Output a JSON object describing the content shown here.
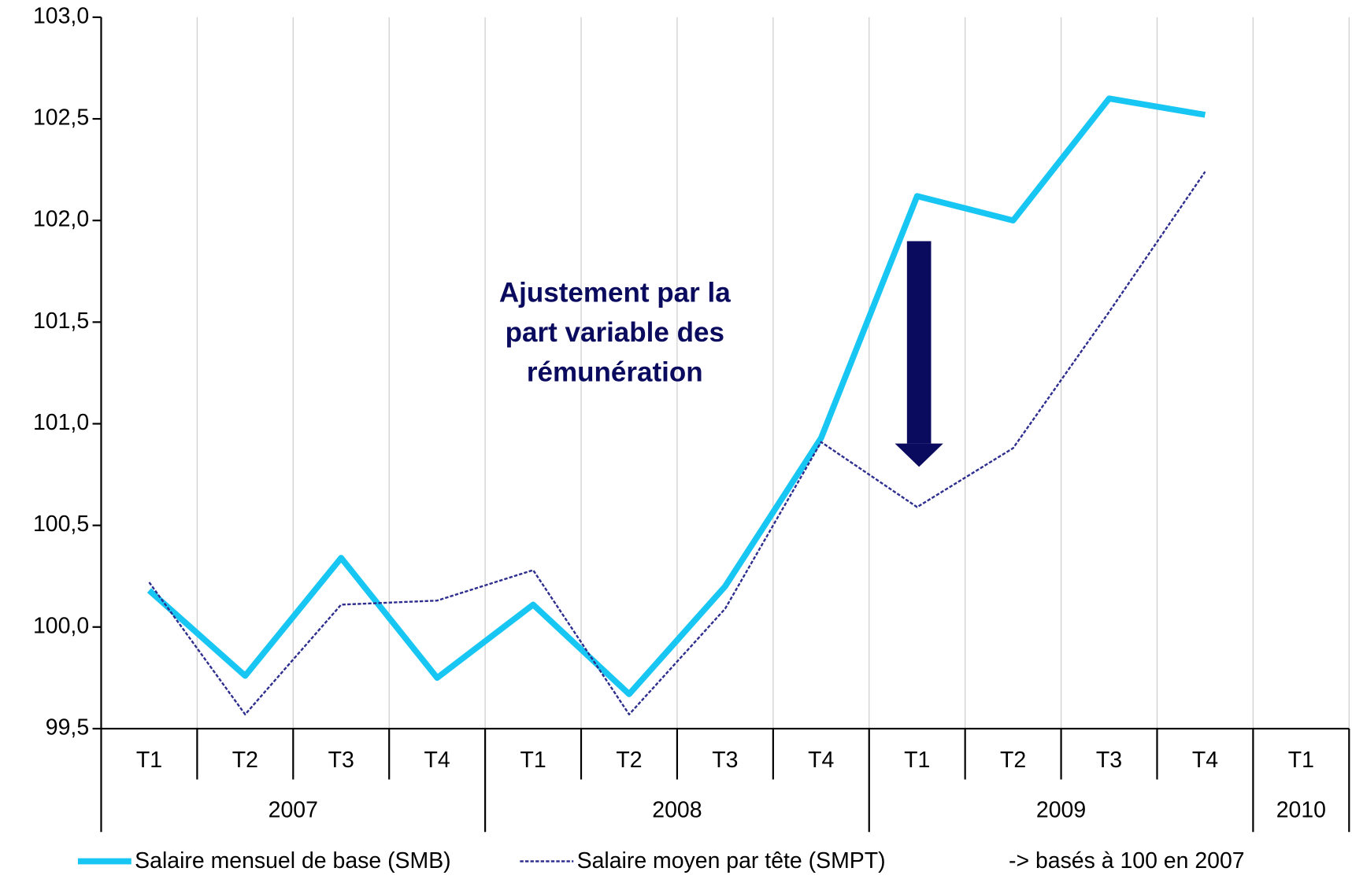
{
  "chart_data": {
    "type": "line",
    "categories": [
      "T1",
      "T2",
      "T3",
      "T4",
      "T1",
      "T2",
      "T3",
      "T4",
      "T1",
      "T2",
      "T3",
      "T4",
      "T1"
    ],
    "groups": [
      {
        "name": "2007",
        "count": 4
      },
      {
        "name": "2008",
        "count": 4
      },
      {
        "name": "2009",
        "count": 4
      },
      {
        "name": "2010",
        "count": 1
      }
    ],
    "series": [
      {
        "name": "Salaire mensuel de base (SMB)",
        "color": "#17c6f2",
        "values": [
          100.18,
          99.76,
          100.34,
          99.75,
          100.11,
          99.67,
          100.2,
          100.93,
          102.12,
          102.0,
          102.6,
          102.52,
          null
        ]
      },
      {
        "name": "Salaire moyen par tête (SMPT)",
        "color": "#2e2e8f",
        "dashed": true,
        "values": [
          100.22,
          99.57,
          100.11,
          100.13,
          100.28,
          99.57,
          100.09,
          100.91,
          100.59,
          100.88,
          101.55,
          102.24,
          null
        ]
      }
    ],
    "ylim": [
      99.5,
      103.0
    ],
    "yticks": [
      {
        "value": 99.5,
        "label": "99,5"
      },
      {
        "value": 100.0,
        "label": "100,0"
      },
      {
        "value": 100.5,
        "label": "100,5"
      },
      {
        "value": 101.0,
        "label": "101,0"
      },
      {
        "value": 101.5,
        "label": "101,5"
      },
      {
        "value": 102.0,
        "label": "102,0"
      },
      {
        "value": 102.5,
        "label": "102,5"
      },
      {
        "value": 103.0,
        "label": "103,0"
      }
    ],
    "annotation": [
      "Ajustement par la",
      "part variable des",
      "rémunération"
    ],
    "note": "-> basés à 100 en 2007",
    "grid": true
  }
}
